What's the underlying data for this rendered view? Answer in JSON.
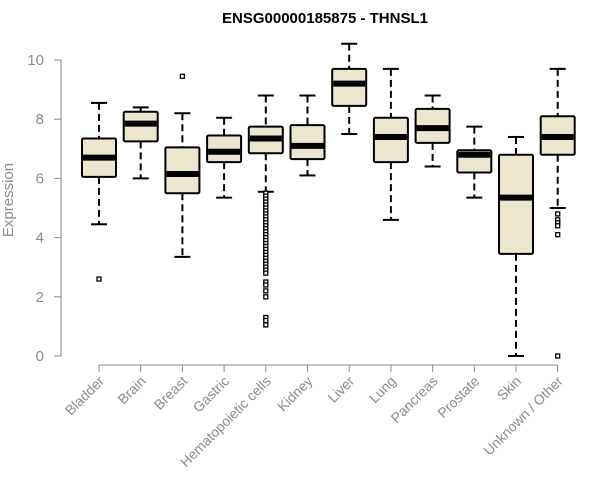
{
  "chart_data": {
    "type": "boxplot",
    "title": "ENSG00000185875 - THNSL1",
    "xlabel": "",
    "ylabel": "Expression",
    "ylim": [
      0,
      10
    ],
    "yticks": [
      0,
      2,
      4,
      6,
      8,
      10
    ],
    "box_fill": "#ede6cf",
    "box_stroke": "#000000",
    "axis_color": "#8c8c8c",
    "categories": [
      "Bladder",
      "Brain",
      "Breast",
      "Gastric",
      "Hematopoietic cells",
      "Kidney",
      "Liver",
      "Lung",
      "Pancreas",
      "Prostate",
      "Skin",
      "Unknown / Other"
    ],
    "boxes": [
      {
        "name": "Bladder",
        "whisker_low": 4.45,
        "q1": 6.05,
        "median": 6.7,
        "q3": 7.35,
        "whisker_high": 8.55,
        "outliers": [
          2.6
        ]
      },
      {
        "name": "Brain",
        "whisker_low": 6.0,
        "q1": 7.25,
        "median": 7.85,
        "q3": 8.25,
        "whisker_high": 8.4,
        "outliers": []
      },
      {
        "name": "Breast",
        "whisker_low": 3.35,
        "q1": 5.5,
        "median": 6.15,
        "q3": 7.05,
        "whisker_high": 8.2,
        "outliers": [
          9.45
        ]
      },
      {
        "name": "Gastric",
        "whisker_low": 5.35,
        "q1": 6.55,
        "median": 6.9,
        "q3": 7.45,
        "whisker_high": 8.05,
        "outliers": []
      },
      {
        "name": "Hematopoietic cells",
        "whisker_low": 5.55,
        "q1": 6.85,
        "median": 7.35,
        "q3": 7.75,
        "whisker_high": 8.8,
        "outliers": [
          5.5,
          5.4,
          5.3,
          5.2,
          5.1,
          5.0,
          4.9,
          4.8,
          4.7,
          4.6,
          4.5,
          4.4,
          4.3,
          4.2,
          4.1,
          4.0,
          3.9,
          3.8,
          3.7,
          3.6,
          3.5,
          3.4,
          3.3,
          3.2,
          3.1,
          3.0,
          2.9,
          2.8,
          2.5,
          2.4,
          2.2,
          2.0,
          1.3,
          1.2,
          1.05
        ]
      },
      {
        "name": "Kidney",
        "whisker_low": 6.1,
        "q1": 6.65,
        "median": 7.1,
        "q3": 7.8,
        "whisker_high": 8.8,
        "outliers": []
      },
      {
        "name": "Liver",
        "whisker_low": 7.5,
        "q1": 8.45,
        "median": 9.2,
        "q3": 9.7,
        "whisker_high": 10.55,
        "outliers": []
      },
      {
        "name": "Lung",
        "whisker_low": 4.6,
        "q1": 6.55,
        "median": 7.4,
        "q3": 8.05,
        "whisker_high": 9.7,
        "outliers": []
      },
      {
        "name": "Pancreas",
        "whisker_low": 6.4,
        "q1": 7.2,
        "median": 7.7,
        "q3": 8.35,
        "whisker_high": 8.8,
        "outliers": []
      },
      {
        "name": "Prostate",
        "whisker_low": 5.35,
        "q1": 6.2,
        "median": 6.8,
        "q3": 6.95,
        "whisker_high": 7.75,
        "outliers": []
      },
      {
        "name": "Skin",
        "whisker_low": 0.0,
        "q1": 3.45,
        "median": 5.35,
        "q3": 6.8,
        "whisker_high": 7.4,
        "outliers": []
      },
      {
        "name": "Unknown / Other",
        "whisker_low": 5.0,
        "q1": 6.8,
        "median": 7.4,
        "q3": 8.1,
        "whisker_high": 9.7,
        "outliers": [
          4.8,
          4.6,
          4.5,
          4.4,
          4.1,
          0.0
        ]
      }
    ]
  }
}
